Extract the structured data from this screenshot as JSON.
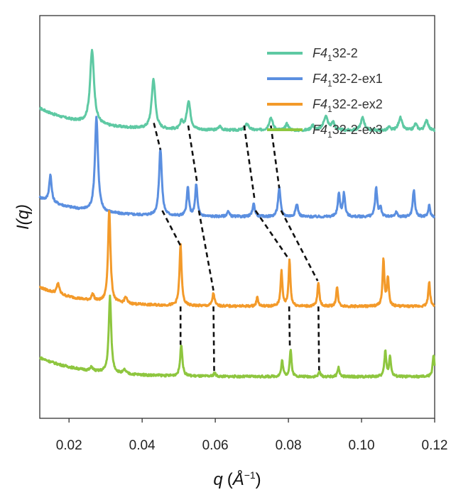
{
  "chart_data": {
    "type": "line",
    "title": "",
    "xlabel": "q (Å−1)",
    "xlabel_parts": {
      "symbol": "q",
      "open": "(",
      "unit": "Å",
      "exponent": "−1",
      "close": ")"
    },
    "ylabel": "I(q)",
    "xlim": [
      0.012,
      0.12
    ],
    "xticks": [
      0.02,
      0.04,
      0.06,
      0.08,
      0.1,
      0.12
    ],
    "xtick_labels": [
      "0.02",
      "0.04",
      "0.06",
      "0.08",
      "0.10",
      "0.12"
    ],
    "y_ticks_shown": false,
    "legend_position": "top-right",
    "series": [
      {
        "name": "F4132-2",
        "label_parts": {
          "main": "F4",
          "sub": "1",
          "rest": "32-2"
        },
        "color": "#5ec9a3",
        "baseline": 4.2,
        "start_offset": 0.35,
        "peaks": [
          {
            "q": 0.0263,
            "h": 1.15,
            "w": 0.00065
          },
          {
            "q": 0.0431,
            "h": 0.78,
            "w": 0.0006
          },
          {
            "q": 0.0508,
            "h": 0.12,
            "w": 0.0004
          },
          {
            "q": 0.0527,
            "h": 0.45,
            "w": 0.0006
          },
          {
            "q": 0.0613,
            "h": 0.06,
            "w": 0.0005
          },
          {
            "q": 0.0687,
            "h": 0.1,
            "w": 0.0006
          },
          {
            "q": 0.0752,
            "h": 0.2,
            "w": 0.0006
          },
          {
            "q": 0.0796,
            "h": 0.1,
            "w": 0.0005
          },
          {
            "q": 0.0866,
            "h": 0.08,
            "w": 0.0005
          },
          {
            "q": 0.0902,
            "h": 0.22,
            "w": 0.0007
          },
          {
            "q": 0.0922,
            "h": 0.12,
            "w": 0.0005
          },
          {
            "q": 0.1003,
            "h": 0.2,
            "w": 0.0006
          },
          {
            "q": 0.1075,
            "h": 0.05,
            "w": 0.0004
          },
          {
            "q": 0.1106,
            "h": 0.2,
            "w": 0.0006
          },
          {
            "q": 0.1148,
            "h": 0.1,
            "w": 0.0005
          },
          {
            "q": 0.1178,
            "h": 0.17,
            "w": 0.0005
          }
        ]
      },
      {
        "name": "F4132-2-ex1",
        "label_parts": {
          "main": "F4",
          "sub": "1",
          "rest": "32-2-ex1"
        },
        "color": "#5b8fe0",
        "baseline": 2.85,
        "start_offset": 0.3,
        "peaks": [
          {
            "q": 0.0149,
            "h": 0.42,
            "w": 0.0004
          },
          {
            "q": 0.0275,
            "h": 1.48,
            "w": 0.0005
          },
          {
            "q": 0.045,
            "h": 1.05,
            "w": 0.00045
          },
          {
            "q": 0.0525,
            "h": 0.45,
            "w": 0.00035
          },
          {
            "q": 0.0548,
            "h": 0.5,
            "w": 0.00035
          },
          {
            "q": 0.0635,
            "h": 0.08,
            "w": 0.0004
          },
          {
            "q": 0.0705,
            "h": 0.2,
            "w": 0.0004
          },
          {
            "q": 0.0775,
            "h": 0.45,
            "w": 0.0004
          },
          {
            "q": 0.0823,
            "h": 0.2,
            "w": 0.0004
          },
          {
            "q": 0.0938,
            "h": 0.36,
            "w": 0.00035
          },
          {
            "q": 0.0952,
            "h": 0.36,
            "w": 0.00035
          },
          {
            "q": 0.104,
            "h": 0.45,
            "w": 0.00035
          },
          {
            "q": 0.1052,
            "h": 0.15,
            "w": 0.0003
          },
          {
            "q": 0.1095,
            "h": 0.08,
            "w": 0.0003
          },
          {
            "q": 0.1143,
            "h": 0.42,
            "w": 0.00035
          },
          {
            "q": 0.1185,
            "h": 0.18,
            "w": 0.0003
          }
        ]
      },
      {
        "name": "F4132-2-ex2",
        "label_parts": {
          "main": "F4",
          "sub": "1",
          "rest": "32-2-ex2"
        },
        "color": "#f39a2a",
        "baseline": 1.45,
        "start_offset": 0.3,
        "peaks": [
          {
            "q": 0.017,
            "h": 0.17,
            "w": 0.0004
          },
          {
            "q": 0.0265,
            "h": 0.1,
            "w": 0.0004
          },
          {
            "q": 0.031,
            "h": 1.45,
            "w": 0.0004
          },
          {
            "q": 0.0355,
            "h": 0.1,
            "w": 0.0004
          },
          {
            "q": 0.0505,
            "h": 0.95,
            "w": 0.00035
          },
          {
            "q": 0.0595,
            "h": 0.2,
            "w": 0.00035
          },
          {
            "q": 0.0715,
            "h": 0.14,
            "w": 0.0003
          },
          {
            "q": 0.0781,
            "h": 0.55,
            "w": 0.0003
          },
          {
            "q": 0.0803,
            "h": 0.72,
            "w": 0.0003
          },
          {
            "q": 0.0882,
            "h": 0.38,
            "w": 0.0003
          },
          {
            "q": 0.0933,
            "h": 0.3,
            "w": 0.0003
          },
          {
            "q": 0.106,
            "h": 0.72,
            "w": 0.0003
          },
          {
            "q": 0.1072,
            "h": 0.45,
            "w": 0.0003
          },
          {
            "q": 0.1185,
            "h": 0.38,
            "w": 0.0003
          }
        ]
      },
      {
        "name": "F4132-2-ex3",
        "label_parts": {
          "main": "F4",
          "sub": "1",
          "rest": "32-2-ex3"
        },
        "color": "#8ec63f",
        "baseline": 0.35,
        "start_offset": 0.3,
        "peaks": [
          {
            "q": 0.0262,
            "h": 0.06,
            "w": 0.0004
          },
          {
            "q": 0.0312,
            "h": 1.2,
            "w": 0.0004
          },
          {
            "q": 0.0352,
            "h": 0.06,
            "w": 0.0004
          },
          {
            "q": 0.0507,
            "h": 0.5,
            "w": 0.00035
          },
          {
            "q": 0.0598,
            "h": 0.06,
            "w": 0.0003
          },
          {
            "q": 0.0783,
            "h": 0.25,
            "w": 0.0003
          },
          {
            "q": 0.0806,
            "h": 0.42,
            "w": 0.0003
          },
          {
            "q": 0.0885,
            "h": 0.08,
            "w": 0.0003
          },
          {
            "q": 0.0937,
            "h": 0.15,
            "w": 0.0003
          },
          {
            "q": 0.1065,
            "h": 0.4,
            "w": 0.0003
          },
          {
            "q": 0.1078,
            "h": 0.32,
            "w": 0.0003
          },
          {
            "q": 0.1197,
            "h": 0.35,
            "w": 0.0003
          }
        ]
      }
    ],
    "connectors": [
      {
        "from": [
          0.0432,
          4.32
        ],
        "to": [
          0.045,
          3.9
        ]
      },
      {
        "from": [
          0.0526,
          4.28
        ],
        "to": [
          0.055,
          3.4
        ]
      },
      {
        "from": [
          0.0679,
          4.28
        ],
        "to": [
          0.0708,
          3.1
        ]
      },
      {
        "from": [
          0.0752,
          4.28
        ],
        "to": [
          0.0775,
          3.3
        ]
      },
      {
        "from": [
          0.0455,
          2.95
        ],
        "to": [
          0.0505,
          2.4
        ]
      },
      {
        "from": [
          0.0555,
          2.95
        ],
        "to": [
          0.0595,
          1.7
        ]
      },
      {
        "from": [
          0.071,
          2.95
        ],
        "to": [
          0.08,
          2.2
        ]
      },
      {
        "from": [
          0.078,
          2.95
        ],
        "to": [
          0.088,
          1.85
        ]
      },
      {
        "from": [
          0.0505,
          1.45
        ],
        "to": [
          0.0505,
          0.85
        ]
      },
      {
        "from": [
          0.0595,
          1.45
        ],
        "to": [
          0.0597,
          0.4
        ]
      },
      {
        "from": [
          0.0802,
          1.45
        ],
        "to": [
          0.0804,
          0.8
        ]
      },
      {
        "from": [
          0.0882,
          1.45
        ],
        "to": [
          0.0884,
          0.45
        ]
      }
    ],
    "ylim": [
      -0.3,
      6.0
    ]
  }
}
